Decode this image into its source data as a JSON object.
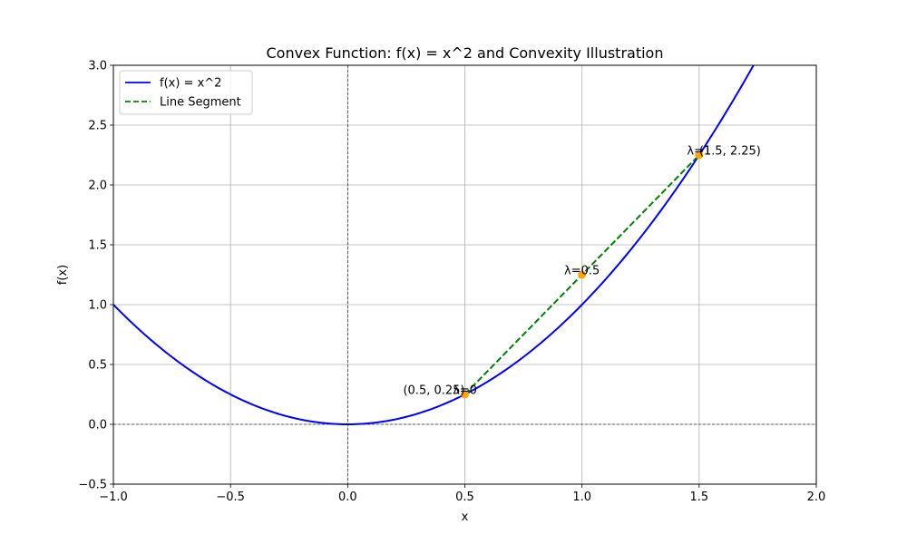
{
  "chart_data": {
    "type": "line",
    "title": "Convex Function: f(x) = x^2 and Convexity Illustration",
    "xlabel": "x",
    "ylabel": "f(x)",
    "xlim": [
      -1.0,
      2.0
    ],
    "ylim": [
      -0.5,
      3.0
    ],
    "grid": true,
    "legend_position": "top-left",
    "xticks": [
      -1.0,
      -0.5,
      0.0,
      0.5,
      1.0,
      1.5,
      2.0
    ],
    "xtick_labels": [
      "−1.0",
      "−0.5",
      "0.0",
      "0.5",
      "1.0",
      "1.5",
      "2.0"
    ],
    "yticks": [
      -0.5,
      0.0,
      0.5,
      1.0,
      1.5,
      2.0,
      2.5,
      3.0
    ],
    "ytick_labels": [
      "−0.5",
      "0.0",
      "0.5",
      "1.0",
      "1.5",
      "2.0",
      "2.5",
      "3.0"
    ],
    "reference_lines": {
      "vertical_x": 0,
      "horizontal_y": 0
    },
    "series": [
      {
        "name": "f(x) = x^2",
        "kind": "function",
        "expression": "x^2",
        "domain": [
          -1.0,
          2.0
        ],
        "color": "#0000ff",
        "style": "solid"
      },
      {
        "name": "Line Segment",
        "kind": "segment",
        "x": [
          0.5,
          1.5
        ],
        "y": [
          0.25,
          2.25
        ],
        "color": "#008000",
        "style": "dashed"
      }
    ],
    "points": [
      {
        "x": 0.5,
        "y": 0.25,
        "color": "#ffa500"
      },
      {
        "x": 1.0,
        "y": 1.25,
        "color": "#ffa500"
      },
      {
        "x": 1.5,
        "y": 2.25,
        "color": "#ffa500"
      }
    ],
    "annotations": [
      {
        "text": "(0.5, 0.25)",
        "x": 0.5,
        "y": 0.25,
        "anchor": "end"
      },
      {
        "text": "λ=0",
        "x": 0.5,
        "y": 0.25,
        "anchor": "middle"
      },
      {
        "text": "λ=0.5",
        "x": 1.0,
        "y": 1.25,
        "anchor": "middle"
      },
      {
        "text": "λ=1",
        "x": 1.5,
        "y": 2.25,
        "anchor": "middle"
      },
      {
        "text": "(1.5, 2.25)",
        "x": 1.5,
        "y": 2.25,
        "anchor": "start"
      }
    ]
  }
}
